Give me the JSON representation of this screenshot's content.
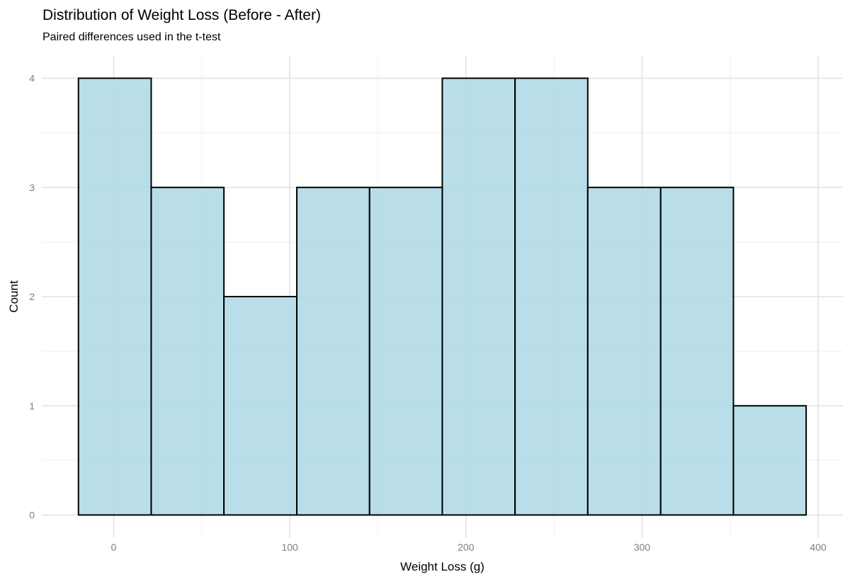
{
  "chart_data": {
    "type": "bar",
    "subtype": "histogram",
    "title": "Distribution of Weight Loss (Before - After)",
    "subtitle": "Paired differences used in the t-test",
    "xlabel": "Weight Loss (g)",
    "ylabel": "Count",
    "bin_edges": [
      -20.0,
      21.3,
      62.6,
      104.0,
      145.3,
      186.6,
      227.9,
      269.2,
      310.6,
      351.9,
      393.2
    ],
    "counts": [
      4,
      3,
      2,
      3,
      3,
      4,
      4,
      3,
      3,
      1
    ],
    "x_ticks": [
      0,
      100,
      200,
      300,
      400
    ],
    "y_ticks": [
      0,
      1,
      2,
      3,
      4
    ],
    "x_minor_ticks": [
      50,
      150,
      250,
      350
    ],
    "y_minor_ticks": [
      0.5,
      1.5,
      2.5,
      3.5
    ],
    "xlim": [
      -40.7,
      413.9
    ],
    "ylim": [
      -0.21,
      4.21
    ],
    "grid": "major and minor, light gray, no panel border",
    "legend_position": "none",
    "colors": {
      "bar_fill": "#ADD8E6",
      "bar_stroke": "#000000",
      "grid_major": "#E5E5E5",
      "grid_minor": "#F2F2F2",
      "axis_text": "#7F7F7F",
      "text": "#000000",
      "background": "#FFFFFF"
    }
  }
}
